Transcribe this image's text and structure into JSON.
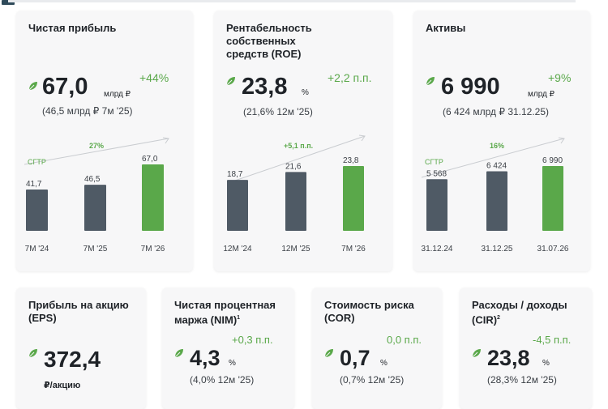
{
  "cards": {
    "net_profit": {
      "title": "Чистая прибыль",
      "value": "67,0",
      "unit": "млрд ₽",
      "delta": "+44%",
      "previous": "(46,5 млрд ₽  7м '25)"
    },
    "roe": {
      "title_lines": [
        "Рентабельность",
        "собственных",
        "средств (ROE)"
      ],
      "value": "23,8",
      "unit": "%",
      "delta": "+2,2 п.п.",
      "previous": "(21,6%  12м '25)"
    },
    "assets": {
      "title": "Активы",
      "value": "6 990",
      "unit": "млрд ₽",
      "delta": "+9%",
      "previous": "(6 424 млрд ₽  31.12.25)"
    },
    "eps": {
      "title_lines": [
        "Прибыль на акцию",
        "(EPS)"
      ],
      "value": "372,4",
      "unit": "₽/акцию"
    },
    "nim": {
      "title_lines": [
        "Чистая процентная",
        "маржа (NIM)"
      ],
      "footnote": "1",
      "value": "4,3",
      "unit": "%",
      "delta": "+0,3 п.п.",
      "previous": "(4,0%  12м '25)"
    },
    "cor": {
      "title_lines": [
        "Стоимость риска",
        "(COR)"
      ],
      "value": "0,7",
      "unit": "%",
      "delta": "0,0 п.п.",
      "previous": "(0,7%  12м '25)"
    },
    "cir": {
      "title_lines": [
        "Расходы / доходы",
        "(CIR)"
      ],
      "footnote": "2",
      "value": "23,8",
      "unit": "%",
      "delta": "-4,5 п.п.",
      "previous": "(28,3%  12м '25)"
    }
  },
  "colors": {
    "bar_gray": "#4f5a65",
    "bar_green": "#5aa84a",
    "accent_green": "#5aa84a",
    "card_bg": "#f7f7f8"
  },
  "chart_data": [
    {
      "type": "bar",
      "categories": [
        "7М '24",
        "7М '25",
        "7М '26"
      ],
      "values": [
        41.7,
        46.5,
        67.0
      ],
      "value_labels": [
        "41,7",
        "46,5",
        "67,0"
      ],
      "growth_label": "СГТР",
      "growth_value": "27%",
      "ylim": [
        0,
        67.0
      ]
    },
    {
      "type": "bar",
      "categories": [
        "12М '24",
        "12М '25",
        "7М '26"
      ],
      "values": [
        18.7,
        21.6,
        23.8
      ],
      "value_labels": [
        "18,7",
        "21,6",
        "23,8"
      ],
      "growth_value": "+5,1 п.п.",
      "ylim": [
        0,
        23.8
      ]
    },
    {
      "type": "bar",
      "categories": [
        "31.12.24",
        "31.12.25",
        "31.07.26"
      ],
      "values": [
        5568,
        6424,
        6990
      ],
      "value_labels": [
        "5 568",
        "6 424",
        "6 990"
      ],
      "growth_label": "СГТР",
      "growth_value": "16%",
      "ylim": [
        0,
        6990
      ]
    }
  ]
}
